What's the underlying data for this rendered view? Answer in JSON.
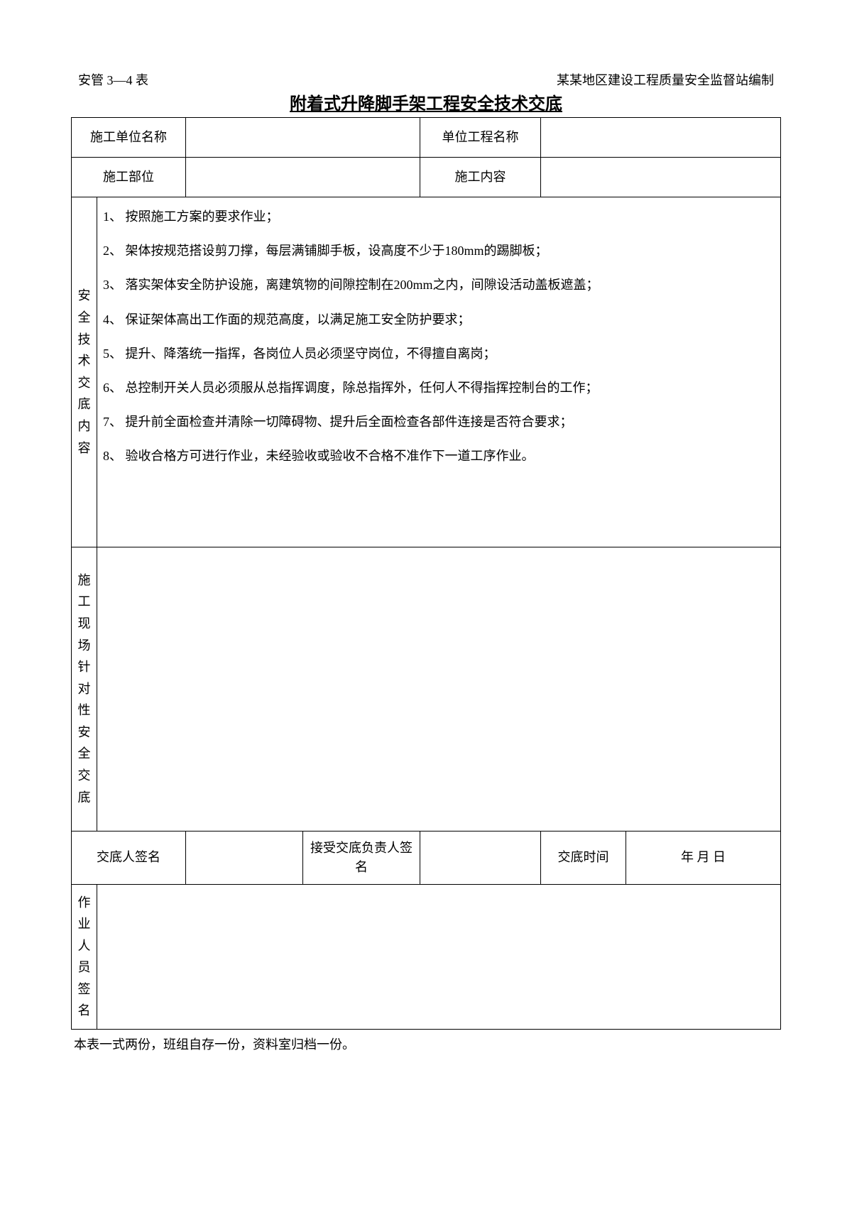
{
  "header": {
    "left": "安管 3—4 表",
    "right": "某某地区建设工程质量安全监督站编制"
  },
  "title": "附着式升降脚手架工程安全技术交底",
  "rows": {
    "r1_label1": "施工单位名称",
    "r1_val1": "",
    "r1_label2": "单位工程名称",
    "r1_val2": "",
    "r2_label1": "施工部位",
    "r2_val1": "",
    "r2_label2": "施工内容",
    "r2_val2": ""
  },
  "section1_label": "安全技术交底内容",
  "section1_items": [
    "1、 按照施工方案的要求作业；",
    "2、 架体按规范搭设剪刀撑，每层满铺脚手板，设高度不少于180mm的踢脚板；",
    "3、 落实架体安全防护设施，离建筑物的间隙控制在200mm之内，间隙设活动盖板遮盖；",
    "4、 保证架体高出工作面的规范高度，以满足施工安全防护要求；",
    "5、 提升、降落统一指挥，各岗位人员必须坚守岗位，不得擅自离岗；",
    "6、 总控制开关人员必须服从总指挥调度，除总指挥外，任何人不得指挥控制台的工作；",
    "7、 提升前全面检查并清除一切障碍物、提升后全面检查各部件连接是否符合要求；",
    "8、 验收合格方可进行作业，未经验收或验收不合格不准作下一道工序作业。"
  ],
  "section2_label": "施工现场针对性安全交底",
  "sig": {
    "col1": "交底人签名",
    "col2": "",
    "col3": "接受交底负责人签名",
    "col4": "",
    "col5": "交底时间",
    "col6": "年 月 日"
  },
  "section3_label": "作业人员签名",
  "footer": "本表一式两份，班组自存一份，资料室归档一份。"
}
